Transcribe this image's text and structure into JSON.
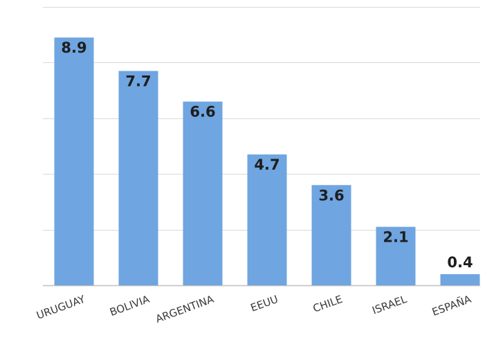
{
  "chart_data": {
    "type": "bar",
    "categories": [
      "URUGUAY",
      "BOLIVIA",
      "ARGENTINA",
      "EEUU",
      "CHILE",
      "ISRAEL",
      "ESPAÑA"
    ],
    "values": [
      8.9,
      7.7,
      6.6,
      4.7,
      3.6,
      2.1,
      0.4
    ],
    "value_labels": [
      "8.9",
      "7.7",
      "6.6",
      "4.7",
      "3.6",
      "2.1",
      "0.4"
    ],
    "title": "",
    "xlabel": "",
    "ylabel": "",
    "ylim": [
      0,
      10
    ],
    "yticks": [
      0,
      2,
      4,
      6,
      8,
      10
    ],
    "grid": true,
    "legend": "none",
    "bar_color": "#6fa5e0",
    "grid_color": "#d9d9d9",
    "axis_color": "#bfbfbf"
  }
}
